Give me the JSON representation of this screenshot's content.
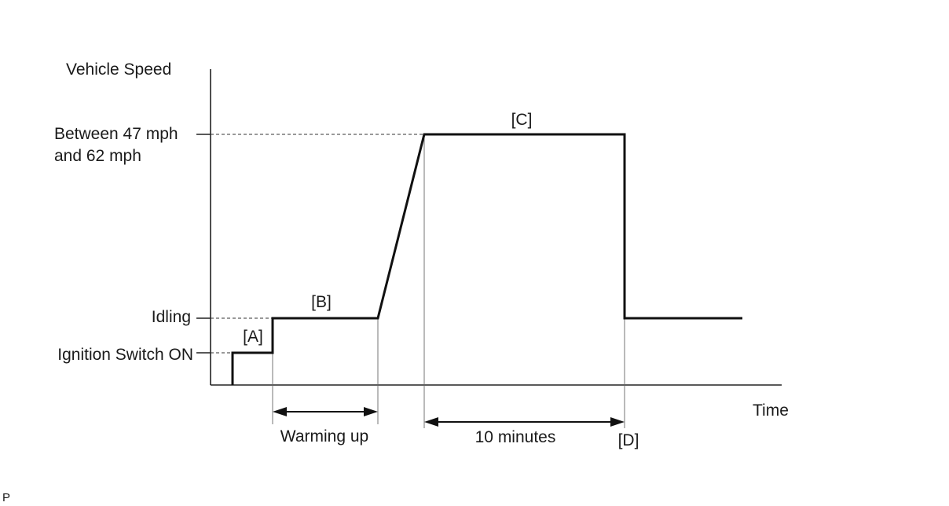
{
  "y_axis_title": "Vehicle Speed",
  "x_axis_title": "Time",
  "y_levels": {
    "high_line1": "Between 47 mph",
    "high_line2": "and 62 mph",
    "idling": "Idling",
    "ignition": "Ignition Switch ON"
  },
  "phase_labels": {
    "a": "[A]",
    "b": "[B]",
    "c": "[C]",
    "d": "[D]"
  },
  "durations": {
    "warming": "Warming up",
    "ten_min": "10 minutes"
  },
  "corner_mark": "P"
}
